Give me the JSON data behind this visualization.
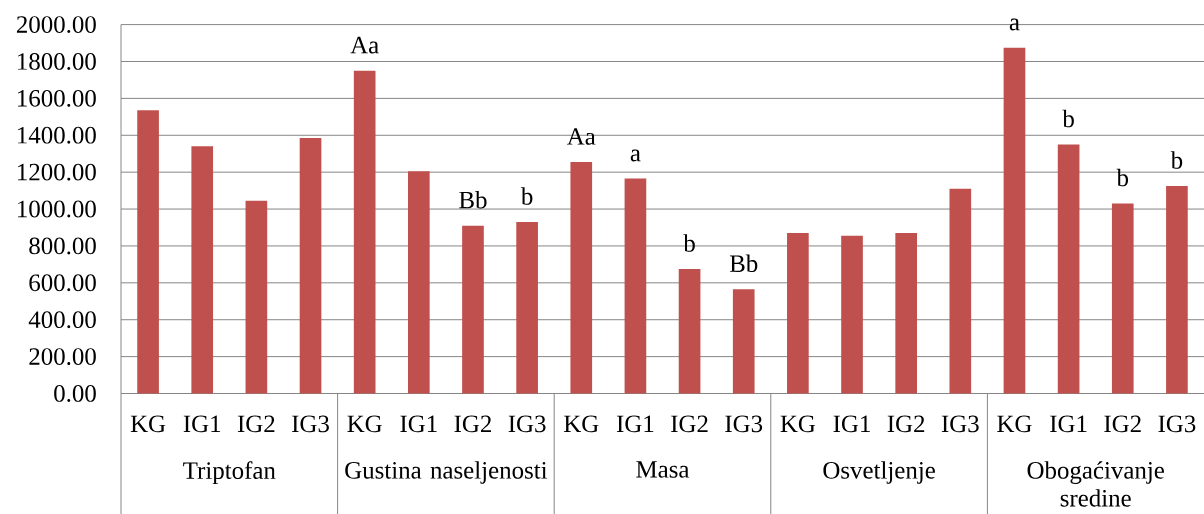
{
  "chart_data": {
    "type": "bar",
    "categories": [
      "Triptofan",
      "Gustina naseljenosti",
      "Masa",
      "Osvetljenje",
      "Obogaćivanje sredine"
    ],
    "series": [
      {
        "name": "KG",
        "color": "#c0504d",
        "values": [
          1535,
          1750,
          1255,
          870,
          1875
        ],
        "value_labels": [
          null,
          "Aa",
          "Aa",
          null,
          "a"
        ]
      },
      {
        "name": "IG1",
        "color": "#c0504d",
        "values": [
          1340,
          1205,
          1165,
          855,
          1350
        ],
        "value_labels": [
          null,
          null,
          "a",
          null,
          "b"
        ]
      },
      {
        "name": "IG2",
        "color": "#c0504d",
        "values": [
          1045,
          910,
          675,
          870,
          1030
        ],
        "value_labels": [
          null,
          "Bb",
          "b",
          null,
          "b"
        ]
      },
      {
        "name": "IG3",
        "color": "#c0504d",
        "values": [
          1385,
          930,
          565,
          1110,
          1125
        ],
        "value_labels": [
          null,
          "b",
          "Bb",
          null,
          "b"
        ]
      }
    ],
    "ylim": [
      0,
      2000
    ],
    "yticks": [
      {
        "value": 0,
        "label": "0.00"
      },
      {
        "value": 200,
        "label": "200.00"
      },
      {
        "value": 400,
        "label": "400.00"
      },
      {
        "value": 600,
        "label": "600.00"
      },
      {
        "value": 800,
        "label": "800.00"
      },
      {
        "value": 1000,
        "label": "1000.00"
      },
      {
        "value": 1200,
        "label": "1200.00"
      },
      {
        "value": 1400,
        "label": "1400.00"
      },
      {
        "value": 1600,
        "label": "1600.00"
      },
      {
        "value": 1800,
        "label": "1800.00"
      },
      {
        "value": 2000,
        "label": "2000.00"
      }
    ],
    "grid": "y"
  }
}
